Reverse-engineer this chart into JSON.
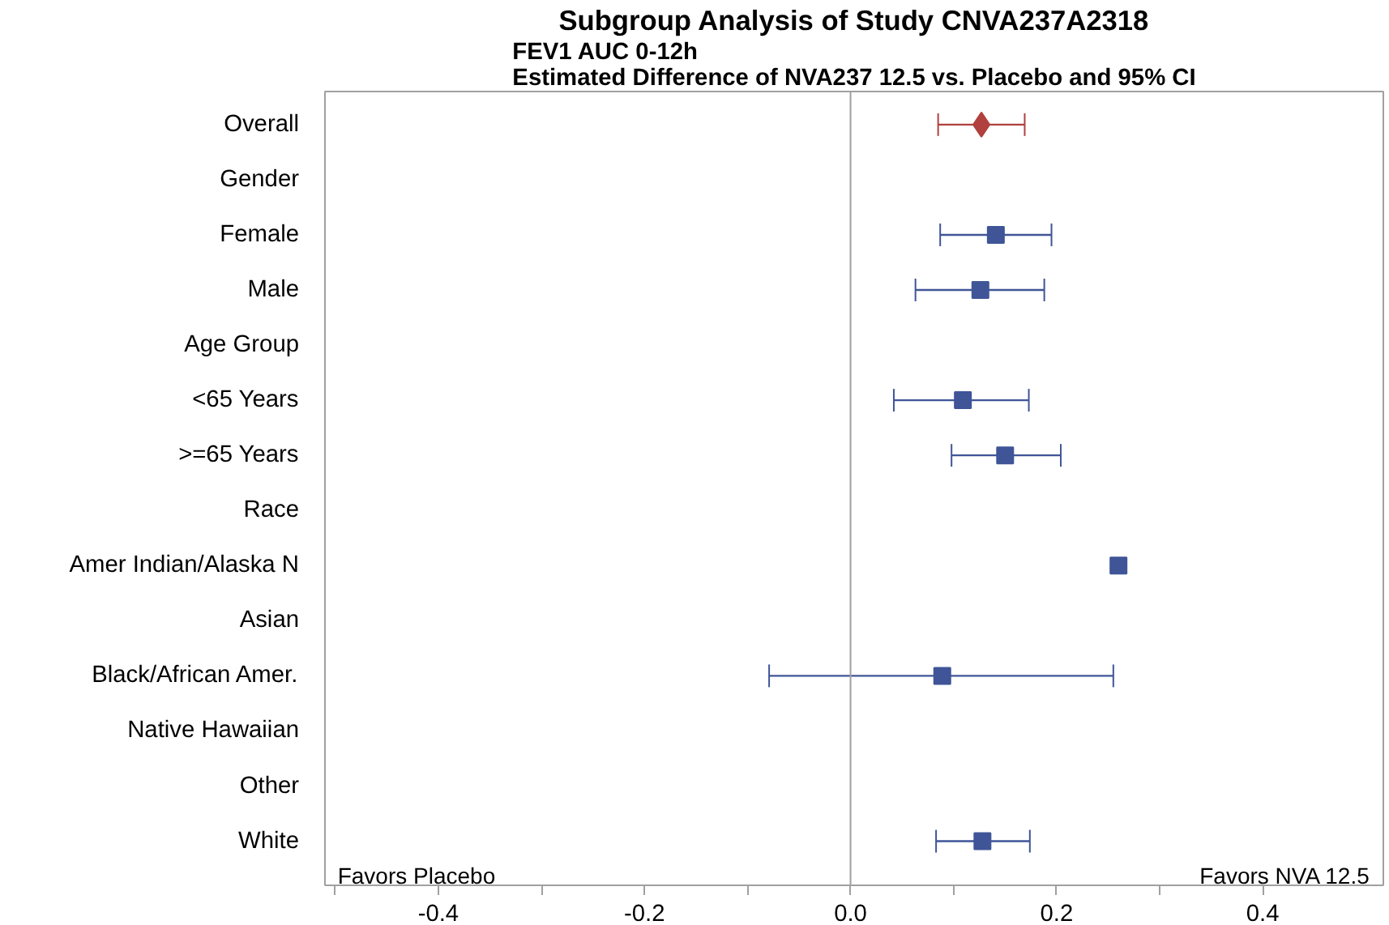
{
  "chart_data": {
    "type": "scatter",
    "orientation": "horizontal",
    "title": "Subgroup Analysis of Study CNVA237A2318",
    "subtitle": "FEV1 AUC 0-12h\nEstimated Difference of NVA237 12.5 vs. Placebo and 95% CI",
    "categories": [
      "Overall",
      "Gender",
      "Female",
      "Male",
      "Age Group",
      "<65 Years",
      ">=65 Years",
      "Race",
      "Amer Indian/Alaska N",
      "Asian",
      "Black/African Amer.",
      "Native Hawaiian",
      "Other",
      "White"
    ],
    "series": [
      {
        "color": "#b0413e",
        "marker": "diamond",
        "values": [
          0.127,
          null,
          null,
          null,
          null,
          null,
          null,
          null,
          null,
          null,
          null,
          null,
          null,
          null
        ],
        "errors": [
          [
            0.085,
            0.169
          ],
          null,
          null,
          null,
          null,
          null,
          null,
          null,
          null,
          null,
          null,
          null,
          null,
          null
        ]
      },
      {
        "color": "#3f5597",
        "marker": "square",
        "values": [
          null,
          null,
          0.141,
          0.126,
          null,
          0.109,
          0.15,
          null,
          0.26,
          null,
          0.089,
          null,
          null,
          0.128
        ],
        "errors": [
          null,
          null,
          [
            0.087,
            0.195
          ],
          [
            0.063,
            0.188
          ],
          null,
          [
            0.042,
            0.173
          ],
          [
            0.098,
            0.204
          ],
          null,
          null,
          null,
          [
            -0.079,
            0.255
          ],
          null,
          null,
          [
            0.083,
            0.174
          ]
        ]
      }
    ],
    "xlim": [
      -0.51,
      0.517
    ],
    "xticks": [
      {
        "value": -0.5,
        "label": null
      },
      {
        "value": -0.4,
        "label": "-0.4"
      },
      {
        "value": -0.3,
        "label": null
      },
      {
        "value": -0.2,
        "label": "-0.2"
      },
      {
        "value": -0.1,
        "label": null
      },
      {
        "value": 0,
        "label": "0.0"
      },
      {
        "value": 0.1,
        "label": null
      },
      {
        "value": 0.2,
        "label": "0.2"
      },
      {
        "value": 0.3,
        "label": null
      },
      {
        "value": 0.4,
        "label": "0.4"
      }
    ],
    "ref_lines": [
      {
        "axis": "x",
        "value": 0,
        "color": "#a0a0a0"
      }
    ],
    "annotations": [
      "Favors Placebo",
      "Favors NVA 12.5"
    ],
    "grid": false
  }
}
